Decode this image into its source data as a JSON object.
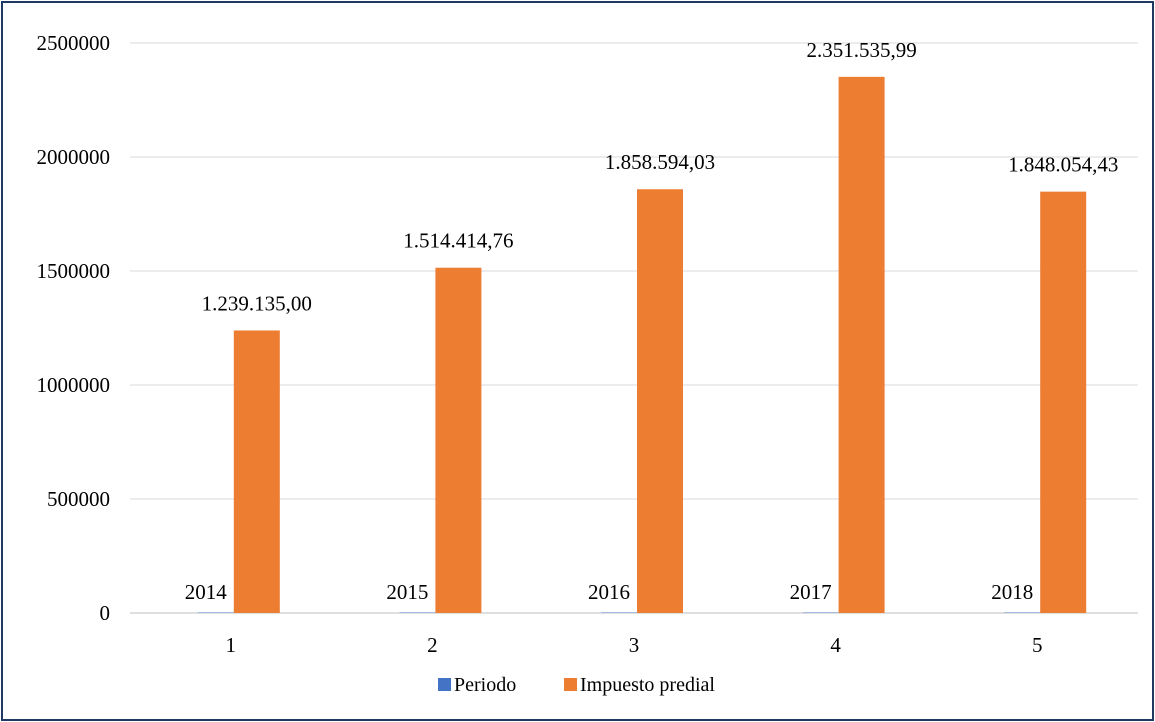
{
  "chart_data": {
    "type": "bar",
    "categories": [
      "1",
      "2",
      "3",
      "4",
      "5"
    ],
    "series": [
      {
        "name": "Periodo",
        "color": "#4472c4",
        "values": [
          2014,
          2015,
          2016,
          2017,
          2018
        ],
        "labels": [
          "2014",
          "2015",
          "2016",
          "2017",
          "2018"
        ]
      },
      {
        "name": "Impuesto predial",
        "color": "#ed7d31",
        "values": [
          1239135.0,
          1514414.76,
          1858594.03,
          2351535.99,
          1848054.43
        ],
        "labels": [
          "1.239.135,00",
          "1.514.414,76",
          "1.858.594,03",
          "2.351.535,99",
          "1.848.054,43"
        ]
      }
    ],
    "ylim": [
      0,
      2500000
    ],
    "yticks": [
      "0",
      "500000",
      "1000000",
      "1500000",
      "2000000",
      "2500000"
    ],
    "title": "",
    "xlabel": "",
    "ylabel": "",
    "grid": true,
    "legend_position": "bottom"
  }
}
